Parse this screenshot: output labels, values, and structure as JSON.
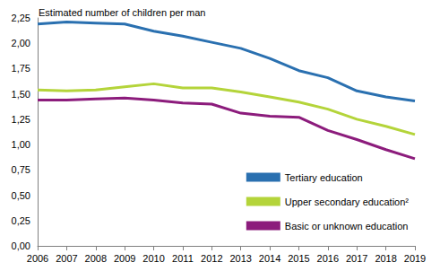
{
  "chart_data": {
    "type": "line",
    "title": "Estimated number of children per man",
    "categories": [
      "2006",
      "2007",
      "2008",
      "2009",
      "2010",
      "2011",
      "2012",
      "2013",
      "2014",
      "2015",
      "2016",
      "2017",
      "2018",
      "2019"
    ],
    "series": [
      {
        "name": "Tertiary education",
        "color": "#2a70b0",
        "values": [
          2.19,
          2.21,
          2.2,
          2.19,
          2.12,
          2.07,
          2.01,
          1.95,
          1.85,
          1.73,
          1.66,
          1.53,
          1.47,
          1.43
        ]
      },
      {
        "name": "Upper secondary education²",
        "color": "#b4d43a",
        "values": [
          1.54,
          1.53,
          1.54,
          1.57,
          1.6,
          1.56,
          1.56,
          1.52,
          1.47,
          1.42,
          1.35,
          1.25,
          1.18,
          1.1
        ]
      },
      {
        "name": "Basic or unknown education",
        "color": "#8c1c7c",
        "values": [
          1.44,
          1.44,
          1.45,
          1.46,
          1.44,
          1.41,
          1.4,
          1.31,
          1.28,
          1.27,
          1.14,
          1.05,
          0.95,
          0.86
        ]
      }
    ],
    "ylim": [
      0,
      2.25
    ],
    "yticks": [
      {
        "value": 0,
        "label": "0,00"
      },
      {
        "value": 0.25,
        "label": "0,25"
      },
      {
        "value": 0.5,
        "label": "0,50"
      },
      {
        "value": 0.75,
        "label": "0,75"
      },
      {
        "value": 1,
        "label": "1,00"
      },
      {
        "value": 1.25,
        "label": "1,25"
      },
      {
        "value": 1.5,
        "label": "1,50"
      },
      {
        "value": 1.75,
        "label": "1,75"
      },
      {
        "value": 2,
        "label": "2,00"
      },
      {
        "value": 2.25,
        "label": "2,25"
      }
    ],
    "grid": false,
    "legend": "bottom-right"
  }
}
